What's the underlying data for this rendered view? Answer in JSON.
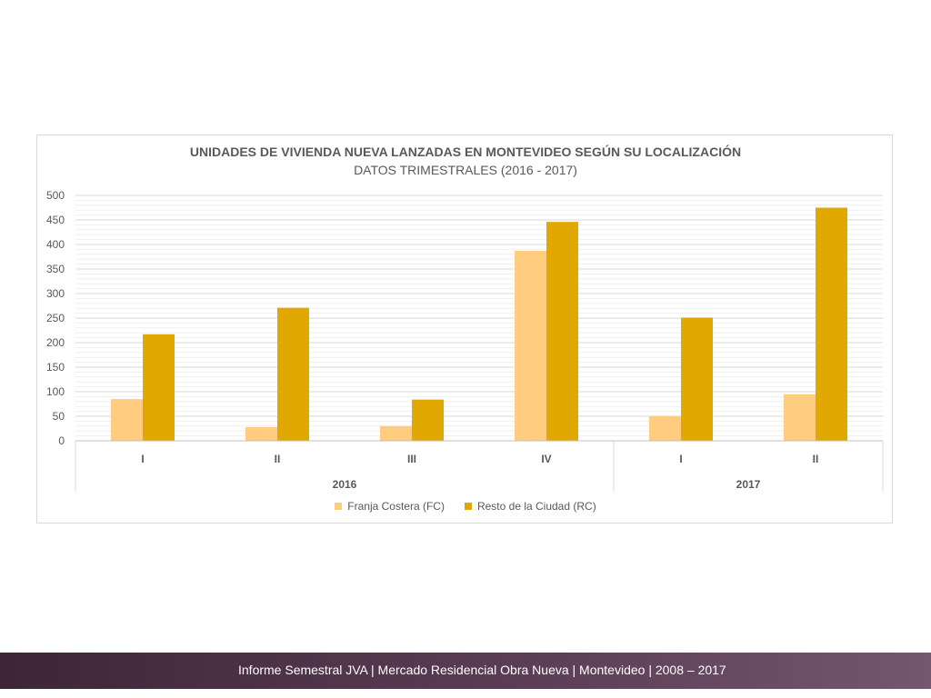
{
  "chart_data": {
    "type": "bar",
    "title": "UNIDADES DE VIVIENDA NUEVA LANZADAS EN MONTEVIDEO SEGÚN SU LOCALIZACIÓN",
    "subtitle": "DATOS TRIMESTRALES (2016 - 2017)",
    "categories": [
      "I",
      "II",
      "III",
      "IV",
      "I",
      "II"
    ],
    "groups": [
      {
        "label": "2016",
        "count": 4
      },
      {
        "label": "2017",
        "count": 2
      }
    ],
    "series": [
      {
        "name": "Franja Costera (FC)",
        "color": "#ffcc80",
        "values": [
          85,
          28,
          30,
          387,
          50,
          95
        ]
      },
      {
        "name": "Resto de la Ciudad (RC)",
        "color": "#e0a800",
        "values": [
          217,
          271,
          84,
          446,
          251,
          475
        ]
      }
    ],
    "ylim": [
      0,
      500
    ],
    "yticks": [
      0,
      50,
      100,
      150,
      200,
      250,
      300,
      350,
      400,
      450,
      500
    ],
    "grid": true,
    "legend_position": "bottom"
  },
  "footer": {
    "text": "Informe Semestral JVA | Mercado Residencial Obra Nueva | Montevideo | 2008 – 2017"
  }
}
